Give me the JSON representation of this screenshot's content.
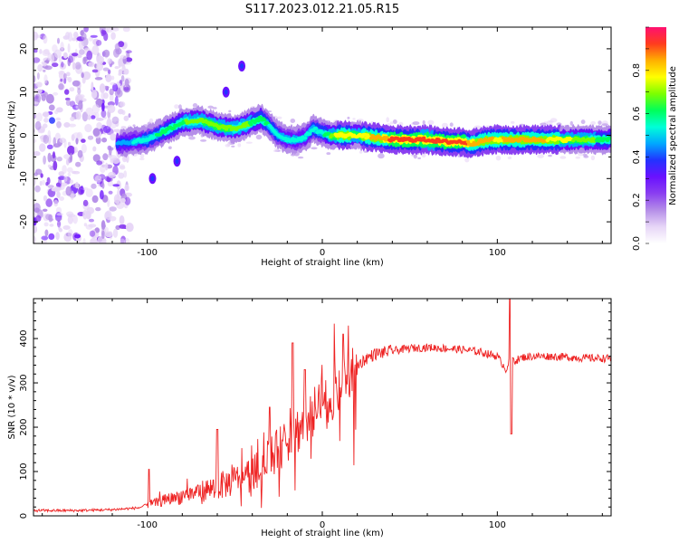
{
  "figure": {
    "title": "S117.2023.012.21.05.R15"
  },
  "chart_data": [
    {
      "type": "heatmap",
      "xlabel": "Height of straight line (km)",
      "ylabel": "Frequency (Hz)",
      "xlim": [
        -165,
        165
      ],
      "ylim": [
        -25,
        25
      ],
      "x_ticks": [
        -100,
        0,
        100
      ],
      "y_ticks": [
        -20,
        -10,
        0,
        10,
        20
      ],
      "colorbar": {
        "label": "Normalized spectral amplitude",
        "ticks": [
          "0.0",
          "0.2",
          "0.4",
          "0.6",
          "0.8"
        ],
        "range": [
          0,
          1
        ],
        "colors": [
          "#ffffff",
          "#e7d6f7",
          "#b58ee8",
          "#8a3ff0",
          "#6a11ff",
          "#2233ff",
          "#00a8ff",
          "#00ffd8",
          "#00ff5a",
          "#7cff00",
          "#ffff00",
          "#ffb000",
          "#ff3c1e",
          "#ff1070"
        ]
      },
      "ridge_frequency_hz": {
        "x": [
          -117,
          -110,
          -100,
          -90,
          -80,
          -70,
          -60,
          -50,
          -40,
          -35,
          -30,
          -25,
          -20,
          -15,
          -10,
          -5,
          0,
          5,
          10,
          20,
          30,
          40,
          50,
          60,
          70,
          80,
          85,
          90,
          95,
          100,
          110,
          120,
          130,
          140,
          150,
          165
        ],
        "y": [
          -2,
          -1.5,
          -1,
          1,
          3,
          3.5,
          2,
          1.5,
          3,
          4,
          2,
          0,
          -1,
          -1,
          -0.5,
          1.5,
          0.5,
          0,
          0,
          0,
          -0.5,
          -1,
          -1,
          -1,
          -1.5,
          -1.5,
          -2,
          -1.5,
          -1,
          -1,
          -1,
          -1,
          -1,
          -1,
          -1,
          -1
        ]
      },
      "peak_amplitude": {
        "x": [
          -117,
          -100,
          -80,
          -60,
          -40,
          -20,
          0,
          10,
          20,
          40,
          60,
          80,
          100,
          120,
          140,
          165
        ],
        "amp": [
          0.45,
          0.55,
          0.65,
          0.7,
          0.65,
          0.5,
          0.55,
          0.8,
          0.75,
          0.9,
          0.95,
          0.9,
          0.8,
          0.85,
          0.75,
          0.6
        ]
      },
      "noise_region_x": [
        -165,
        -110
      ],
      "isolated_features": [
        {
          "x": -46,
          "y": 16
        },
        {
          "x": -55,
          "y": 10
        },
        {
          "x": -83,
          "y": -6
        },
        {
          "x": -97,
          "y": -10
        }
      ]
    },
    {
      "type": "line",
      "xlabel": "Height of straight line (km)",
      "ylabel": "SNR (10 * v/v)",
      "xlim": [
        -165,
        165
      ],
      "ylim": [
        0,
        490
      ],
      "x_ticks": [
        -100,
        0,
        100
      ],
      "y_ticks": [
        0,
        100,
        200,
        300,
        400
      ],
      "color": "#ee2222",
      "series": [
        {
          "x": [
            -165,
            -140,
            -120,
            -105,
            -100,
            -90,
            -80,
            -70,
            -60,
            -50,
            -40,
            -35,
            -30,
            -25,
            -20,
            -15,
            -10,
            -5,
            0,
            5,
            10,
            15,
            20,
            25,
            30,
            40,
            50,
            60,
            70,
            80,
            90,
            100,
            105,
            108,
            110,
            115,
            120,
            130,
            140,
            150,
            165
          ],
          "y": [
            12,
            12,
            14,
            18,
            25,
            35,
            45,
            55,
            65,
            80,
            95,
            110,
            130,
            150,
            170,
            190,
            210,
            230,
            250,
            270,
            295,
            320,
            340,
            355,
            365,
            372,
            378,
            380,
            378,
            375,
            370,
            360,
            330,
            360,
            350,
            358,
            360,
            360,
            358,
            356,
            355
          ],
          "spikes": [
            {
              "x": -99,
              "y": 105
            },
            {
              "x": -60,
              "y": 195
            },
            {
              "x": -30,
              "y": 245
            },
            {
              "x": -17,
              "y": 390
            },
            {
              "x": -10,
              "y": 330
            },
            {
              "x": 12,
              "y": 410
            },
            {
              "x": 107,
              "y": 490
            },
            {
              "x": 108,
              "y": 185
            }
          ]
        }
      ]
    }
  ]
}
